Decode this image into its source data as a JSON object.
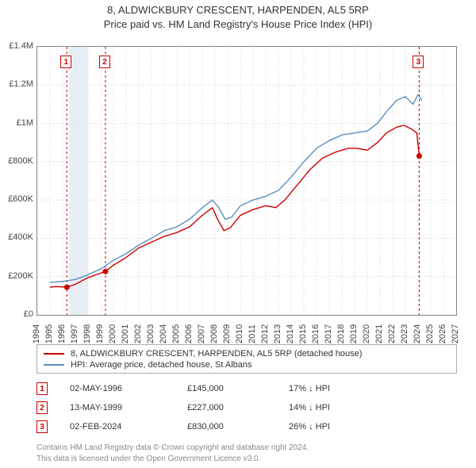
{
  "title_line1": "8, ALDWICKBURY CRESCENT, HARPENDEN, AL5 5RP",
  "title_line2": "Price paid vs. HM Land Registry's House Price Index (HPI)",
  "chart": {
    "type": "line",
    "background_color": "#ffffff",
    "grid_color": "#e3e3e3",
    "grid_dash": "2,2",
    "axis_color": "#888888",
    "x_years": [
      1994,
      1995,
      1996,
      1997,
      1998,
      1999,
      2000,
      2001,
      2002,
      2003,
      2004,
      2005,
      2006,
      2007,
      2008,
      2009,
      2010,
      2011,
      2012,
      2013,
      2014,
      2015,
      2016,
      2017,
      2018,
      2019,
      2020,
      2021,
      2022,
      2023,
      2024,
      2025,
      2026,
      2027
    ],
    "xlim": [
      1994,
      2027
    ],
    "ylim": [
      0,
      1400000
    ],
    "y_ticks": [
      0,
      200000,
      400000,
      600000,
      800000,
      1000000,
      1200000,
      1400000
    ],
    "y_tick_labels": [
      "£0",
      "£200K",
      "£400K",
      "£600K",
      "£800K",
      "£1M",
      "£1.2M",
      "£1.4M"
    ],
    "highlight_band": {
      "from": 1996.5,
      "to": 1998.0,
      "color": "#e8eef6"
    },
    "series": [
      {
        "name": "price_paid",
        "label": "8, ALDWICKBURY CRESCENT, HARPENDEN, AL5 5RP (detached house)",
        "color": "#cc0000",
        "line_width": 1.4,
        "points": [
          [
            1995.0,
            145000
          ],
          [
            1995.5,
            148000
          ],
          [
            1996.33,
            145000
          ],
          [
            1997.0,
            160000
          ],
          [
            1998.0,
            195000
          ],
          [
            1999.37,
            227000
          ],
          [
            2000.0,
            260000
          ],
          [
            2001.0,
            300000
          ],
          [
            2002.0,
            350000
          ],
          [
            2003.0,
            380000
          ],
          [
            2004.0,
            410000
          ],
          [
            2005.0,
            430000
          ],
          [
            2006.0,
            460000
          ],
          [
            2007.0,
            520000
          ],
          [
            2007.8,
            560000
          ],
          [
            2008.2,
            500000
          ],
          [
            2008.7,
            440000
          ],
          [
            2009.2,
            455000
          ],
          [
            2010.0,
            520000
          ],
          [
            2011.0,
            550000
          ],
          [
            2012.0,
            570000
          ],
          [
            2012.8,
            560000
          ],
          [
            2013.5,
            600000
          ],
          [
            2014.5,
            680000
          ],
          [
            2015.5,
            760000
          ],
          [
            2016.5,
            820000
          ],
          [
            2017.5,
            850000
          ],
          [
            2018.5,
            870000
          ],
          [
            2019.2,
            870000
          ],
          [
            2020.0,
            860000
          ],
          [
            2020.8,
            900000
          ],
          [
            2021.5,
            950000
          ],
          [
            2022.3,
            980000
          ],
          [
            2022.9,
            990000
          ],
          [
            2023.5,
            970000
          ],
          [
            2023.9,
            950000
          ],
          [
            2024.09,
            830000
          ]
        ]
      },
      {
        "name": "hpi",
        "label": "HPI: Average price, detached house, St Albans",
        "color": "#5b8fbf",
        "line_width": 1.4,
        "points": [
          [
            1995.0,
            170000
          ],
          [
            1996.0,
            175000
          ],
          [
            1997.0,
            185000
          ],
          [
            1998.0,
            210000
          ],
          [
            1999.0,
            240000
          ],
          [
            2000.0,
            285000
          ],
          [
            2001.0,
            320000
          ],
          [
            2002.0,
            365000
          ],
          [
            2003.0,
            400000
          ],
          [
            2004.0,
            440000
          ],
          [
            2005.0,
            460000
          ],
          [
            2006.0,
            500000
          ],
          [
            2007.0,
            560000
          ],
          [
            2007.8,
            600000
          ],
          [
            2008.3,
            560000
          ],
          [
            2008.8,
            500000
          ],
          [
            2009.3,
            510000
          ],
          [
            2010.0,
            570000
          ],
          [
            2011.0,
            600000
          ],
          [
            2012.0,
            620000
          ],
          [
            2013.0,
            650000
          ],
          [
            2014.0,
            720000
          ],
          [
            2015.0,
            800000
          ],
          [
            2016.0,
            870000
          ],
          [
            2017.0,
            910000
          ],
          [
            2018.0,
            940000
          ],
          [
            2019.0,
            950000
          ],
          [
            2020.0,
            960000
          ],
          [
            2020.8,
            1000000
          ],
          [
            2021.5,
            1060000
          ],
          [
            2022.3,
            1120000
          ],
          [
            2023.0,
            1140000
          ],
          [
            2023.6,
            1100000
          ],
          [
            2024.0,
            1150000
          ],
          [
            2024.3,
            1120000
          ]
        ]
      }
    ],
    "sale_markers": [
      {
        "n": "1",
        "year": 1996.33,
        "price": 145000
      },
      {
        "n": "2",
        "year": 1999.37,
        "price": 227000
      },
      {
        "n": "3",
        "year": 2024.09,
        "price": 830000
      }
    ],
    "sale_marker_style": {
      "dot_color": "#cc0000",
      "dot_radius": 3.5,
      "line_color": "#cc0000",
      "line_dash": "3,3"
    }
  },
  "legend": [
    {
      "color": "#cc0000",
      "label": "8, ALDWICKBURY CRESCENT, HARPENDEN, AL5 5RP (detached house)"
    },
    {
      "color": "#5b8fbf",
      "label": "HPI: Average price, detached house, St Albans"
    }
  ],
  "events": [
    {
      "n": "1",
      "date": "02-MAY-1996",
      "price": "£145,000",
      "delta": "17% ↓ HPI"
    },
    {
      "n": "2",
      "date": "13-MAY-1999",
      "price": "£227,000",
      "delta": "14% ↓ HPI"
    },
    {
      "n": "3",
      "date": "02-FEB-2024",
      "price": "£830,000",
      "delta": "26% ↓ HPI"
    }
  ],
  "attribution_line1": "Contains HM Land Registry data © Crown copyright and database right 2024.",
  "attribution_line2": "This data is licensed under the Open Government Licence v3.0."
}
